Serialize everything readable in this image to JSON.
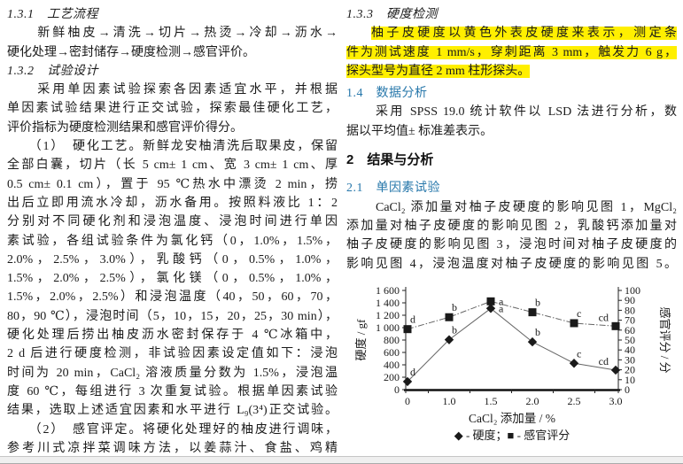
{
  "accent_colors": {
    "section_heading": "#2878ab",
    "highlight": "#ffef00",
    "text": "#1a1a1a"
  },
  "left_column": {
    "lines": [
      {
        "style": "kaiti plain",
        "text": "1.3.1　工艺流程"
      },
      {
        "style": "just",
        "text": "　　新鲜柚皮→清洗→切片→热烫→冷却→沥水→"
      },
      {
        "style": "plain",
        "text": "硬化处理→密封储存→硬度检测→感官评价。"
      },
      {
        "style": "kaiti plain",
        "text": "1.3.2　试验设计"
      },
      {
        "style": "just",
        "text": "　　采用单因素试验探索各因素适宜水平，并根据"
      },
      {
        "style": "just",
        "text": "单因素试验结果进行正交试验，探索最佳硬化工艺，"
      },
      {
        "style": "plain",
        "text": "评价指标为硬度检测结果和感官评价得分。"
      },
      {
        "style": "just",
        "text": "　　（1）　硬化工艺。新鲜龙安柚清洗后取果皮，保留"
      },
      {
        "style": "just",
        "text": "全部白囊，切片（长 5 cm± 1 cm、宽 3 cm± 1 cm、厚"
      },
      {
        "style": "just",
        "text": "0.5 cm± 0.1 cm），置于 95 ℃热水中漂烫 2 min，捞"
      },
      {
        "style": "just",
        "text": "出后立即用流水冷却，沥水备用。按照料液比 1：2"
      },
      {
        "style": "just",
        "text": "分别对不同硬化剂和浸泡温度、浸泡时间进行单因"
      },
      {
        "style": "just",
        "text": "素试验，各组试验条件为氯化钙（0，1.0%，1.5%，"
      },
      {
        "style": "just",
        "text": "2.0%，2.5%，3.0%），乳酸钙（0，0.5%，1.0%，"
      },
      {
        "style": "just",
        "text": "1.5%，2.0%，2.5%），氯化镁（0，0.5%，1.0%，"
      },
      {
        "style": "just",
        "text": "1.5%，2.0%，2.5%）和浸泡温度（40，50，60，70，"
      },
      {
        "style": "just",
        "text": "80，90 ℃），浸泡时间（5，10，15，20，25，30 min），"
      },
      {
        "style": "just",
        "text": "硬化处理后捞出柚皮沥水密封保存于 4 ℃冰箱中，"
      },
      {
        "style": "just",
        "text": "2 d 后进行硬度检测，非试验因素设定值如下：浸泡"
      },
      {
        "style": "just",
        "text": "时间为 20 min，CaCl₂ 溶液质量分数为 1.5%，浸泡温"
      },
      {
        "style": "just",
        "text": "度 60 ℃，每组进行 3 次重复试验。根据单因素试验"
      },
      {
        "style": "just",
        "text": "结果，选取上述适宜因素和水平进行 L₉(3⁴)正交试验。"
      },
      {
        "style": "just",
        "text": "　　（2）　感官评定。将硬化处理好的柚皮进行调味，"
      },
      {
        "style": "just",
        "text": "参考川式凉拌菜调味方法，以姜蒜汁、食盐、鸡精"
      }
    ]
  },
  "right_column": {
    "lines": [
      {
        "style": "kaiti plain",
        "text": "1.3.3　硬度检测"
      },
      {
        "style": "hl-first",
        "text": "柚子皮硬度以黄色外表皮硬度来表示，测定条"
      },
      {
        "style": "hl-just",
        "text": "件为测试速度 1 mm/s，穿刺距离 3 mm，触发力 6 g，"
      },
      {
        "style": "hl-end",
        "text": "探头型号为直径 2 mm 柱形探头。"
      },
      {
        "style": "h-teal plain sp-sm",
        "text": "1.4　数据分析"
      },
      {
        "style": "just",
        "text": "　　采用 SPSS 19.0 统计软件以 LSD 法进行分析，数"
      },
      {
        "style": "plain",
        "text": "据以平均值± 标准差表示。"
      },
      {
        "style": "h-bold plain sp-md",
        "text": "2　结果与分析"
      },
      {
        "style": "h-teal plain sp-md",
        "text": "2.1　单因素试验"
      },
      {
        "style": "just",
        "text": "　　CaCl₂ 添加量对柚子皮硬度的影响见图 1，MgCl₂"
      },
      {
        "style": "just",
        "text": "添加量对柚子皮硬度的影响见图 2，乳酸钙添加量对"
      },
      {
        "style": "just",
        "text": "柚子皮硬度的影响见图 3，浸泡时间对柚子皮硬度的"
      },
      {
        "style": "just",
        "text": "影响见图 4，浸泡温度对柚子皮硬度的影响见图 5。"
      }
    ]
  },
  "chart_data": {
    "type": "line",
    "categories": [
      "0",
      "1.0",
      "1.5",
      "2.0",
      "2.5",
      "3.0"
    ],
    "series": [
      {
        "name": "硬度",
        "axis": "left",
        "marker": "diamond",
        "line_style": "solid",
        "values": [
          130,
          805,
          1310,
          770,
          425,
          315
        ],
        "point_labels": [
          "d",
          "b",
          "a",
          "b",
          "c",
          "cd"
        ],
        "label_pos": [
          "above",
          "above",
          "right",
          "above",
          "above",
          "left"
        ]
      },
      {
        "name": "感官评分",
        "axis": "right",
        "marker": "square",
        "line_style": "dashdot",
        "values": [
          61,
          73,
          89,
          78,
          67,
          64
        ],
        "point_labels": [
          "d",
          "b",
          "a",
          "b",
          "c",
          "cd"
        ],
        "label_pos": [
          "above",
          "above",
          "right",
          "above",
          "above",
          "left"
        ]
      }
    ],
    "xlabel": "CaCl₂ 添加量 / %",
    "ylabel_left": "硬度 / gf",
    "ylabel_right": "感官评分 / 分",
    "ylim_left": [
      0,
      1600
    ],
    "ylim_right": [
      0,
      100
    ],
    "yticks_left": [
      "0",
      "200",
      "400",
      "600",
      "800",
      "1 000",
      "1 200",
      "1 400",
      "1 600"
    ],
    "yticks_right": [
      "0",
      "10",
      "20",
      "30",
      "40",
      "50",
      "60",
      "70",
      "80",
      "90",
      "100"
    ],
    "grid": false,
    "legend": "◆ - 硬度；■ - 感官评分",
    "legend_position": "bottom"
  }
}
